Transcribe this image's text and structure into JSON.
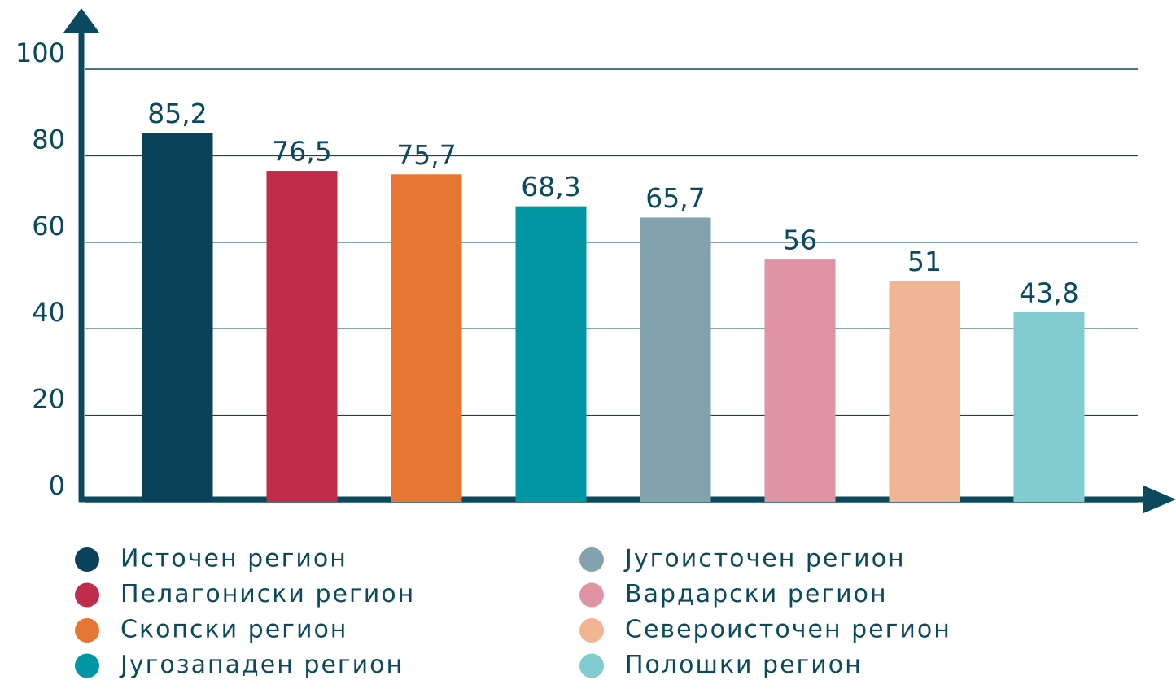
{
  "chart_data": {
    "type": "bar",
    "categories": [
      "Источен регион",
      "Пелагониски регион",
      "Скопски регион",
      "Југозападен регион",
      "Југоисточен регион",
      "Вардарски регион",
      "Североисточен регион",
      "Полошки регион"
    ],
    "values": [
      85.2,
      76.5,
      75.7,
      68.3,
      65.7,
      56,
      51,
      43.8
    ],
    "value_labels": [
      "85,2",
      "76,5",
      "75,7",
      "68,3",
      "65,7",
      "56",
      "51",
      "43,8"
    ],
    "colors": [
      "#0b4259",
      "#c22c4b",
      "#e67632",
      "#0097a3",
      "#82a2ae",
      "#df93a3",
      "#f2b594",
      "#82cbce"
    ],
    "ylim": [
      0,
      100
    ],
    "yticks": [
      0,
      20,
      40,
      60,
      80,
      100
    ],
    "grid": true
  }
}
